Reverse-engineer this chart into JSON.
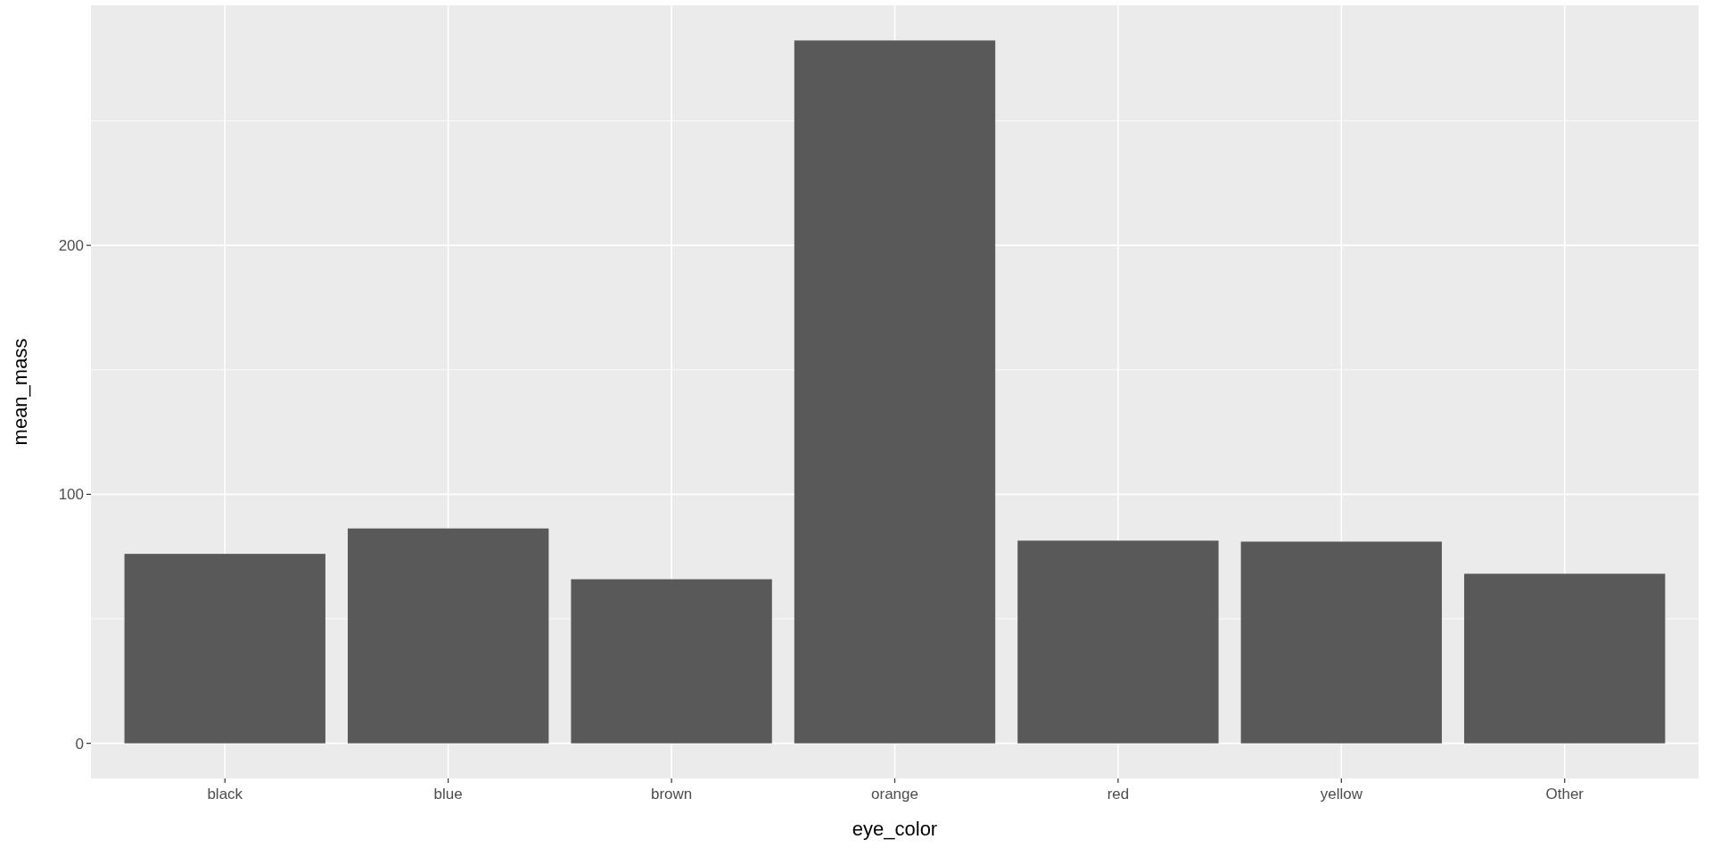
{
  "chart_data": {
    "type": "bar",
    "xlabel": "eye_color",
    "ylabel": "mean_mass",
    "categories": [
      "black",
      "blue",
      "brown",
      "orange",
      "red",
      "yellow",
      "Other"
    ],
    "values": [
      76.1,
      86.3,
      65.9,
      282.3,
      81.4,
      81.0,
      68.1
    ],
    "color": "#595959",
    "ylim": [
      -14.1,
      296.4
    ],
    "yticks": [
      0,
      100,
      200
    ],
    "grid": true
  }
}
